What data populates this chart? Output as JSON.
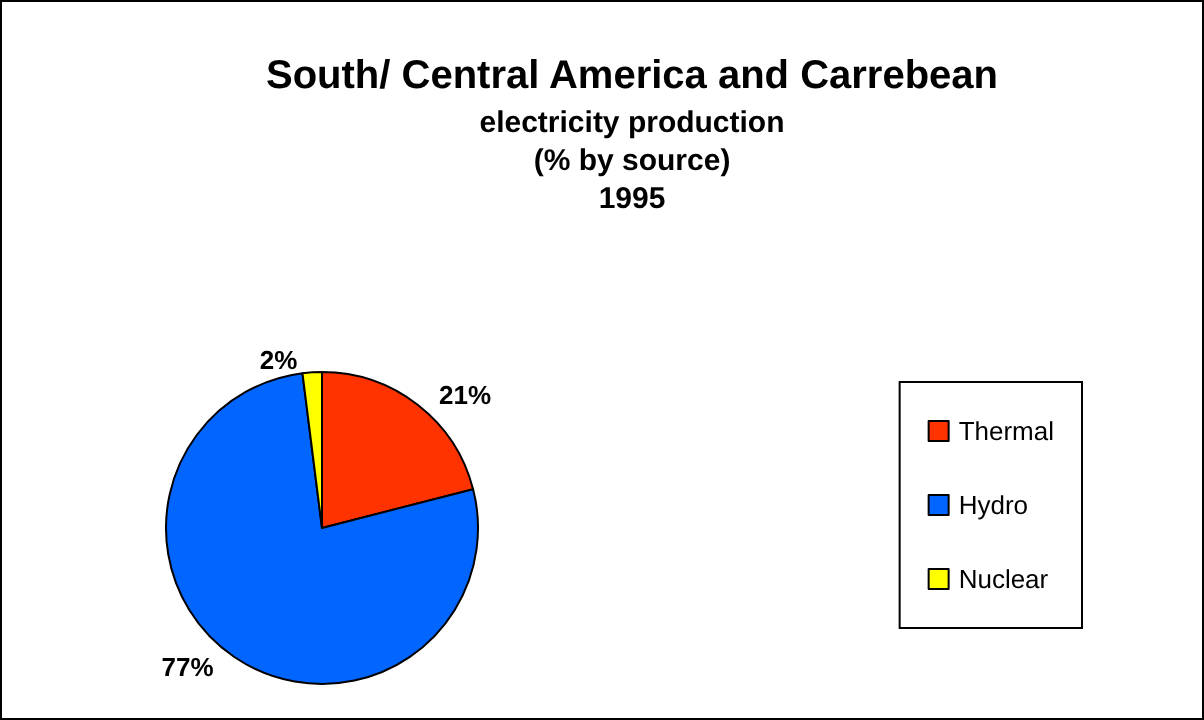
{
  "chart_data": {
    "type": "pie",
    "title": "South/ Central America and Carrebean",
    "subtitle": "electricity production\n(% by source)\n1995",
    "categories": [
      "Thermal",
      "Hydro",
      "Nuclear"
    ],
    "values": [
      21,
      77,
      2
    ],
    "colors": [
      "#ff3300",
      "#0066ff",
      "#ffff00"
    ],
    "value_labels": [
      "21%",
      "77%",
      "2%"
    ],
    "legend": "right"
  }
}
